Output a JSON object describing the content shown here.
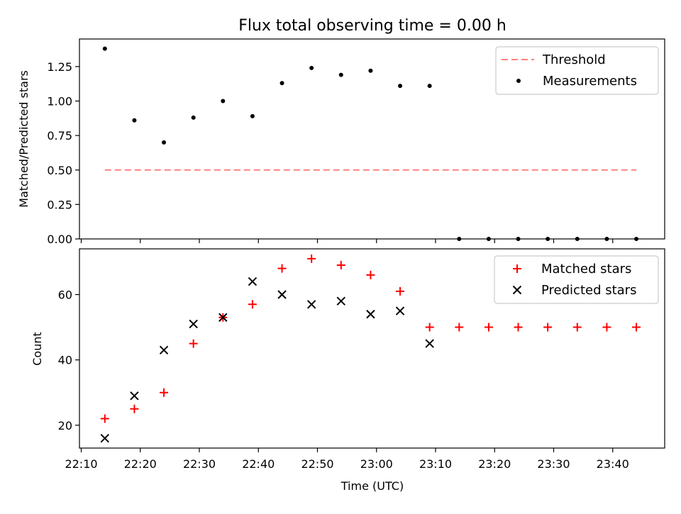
{
  "chart_data": [
    {
      "type": "scatter",
      "title": "Flux total observing time = 0.00 h",
      "xlabel": "",
      "ylabel": "Matched/Predicted stars",
      "ylim": [
        0,
        1.45
      ],
      "yticks": [
        "0.00",
        "0.25",
        "0.50",
        "0.75",
        "1.00",
        "1.25"
      ],
      "ytick_values": [
        0,
        0.25,
        0.5,
        0.75,
        1.0,
        1.25
      ],
      "legend_position": "top-right",
      "series": [
        {
          "name": "Threshold",
          "style": "dashed-line",
          "color": "#ff8080",
          "x": [
            "22:14",
            "23:44"
          ],
          "y": [
            0.5,
            0.5
          ]
        },
        {
          "name": "Measurements",
          "style": "dot",
          "color": "#000000",
          "x": [
            "22:14",
            "22:19",
            "22:24",
            "22:29",
            "22:34",
            "22:39",
            "22:44",
            "22:49",
            "22:54",
            "22:59",
            "23:04",
            "23:09",
            "23:14",
            "23:19",
            "23:24",
            "23:29",
            "23:34",
            "23:39",
            "23:44"
          ],
          "y": [
            1.38,
            0.86,
            0.7,
            0.88,
            1.0,
            0.89,
            1.13,
            1.24,
            1.19,
            1.22,
            1.11,
            1.11,
            0,
            0,
            0,
            0,
            0,
            0,
            0
          ]
        }
      ]
    },
    {
      "type": "scatter",
      "title": "",
      "xlabel": "Time (UTC)",
      "ylabel": "Count",
      "ylim": [
        13,
        74
      ],
      "yticks": [
        "20",
        "40",
        "60"
      ],
      "ytick_values": [
        20,
        40,
        60
      ],
      "xticks": [
        "22:10",
        "22:20",
        "22:30",
        "22:40",
        "22:50",
        "23:00",
        "23:10",
        "23:20",
        "23:30",
        "23:40"
      ],
      "legend_position": "top-right",
      "series": [
        {
          "name": "Matched stars",
          "style": "plus",
          "color": "#ff0000",
          "x": [
            "22:14",
            "22:19",
            "22:24",
            "22:29",
            "22:34",
            "22:39",
            "22:44",
            "22:49",
            "22:54",
            "22:59",
            "23:04",
            "23:09",
            "23:14",
            "23:19",
            "23:24",
            "23:29",
            "23:34",
            "23:39",
            "23:44"
          ],
          "y": [
            22,
            25,
            30,
            45,
            53,
            57,
            68,
            71,
            69,
            66,
            61,
            50,
            50,
            50,
            50,
            50,
            50,
            50,
            50
          ]
        },
        {
          "name": "Predicted stars",
          "style": "cross",
          "color": "#000000",
          "x": [
            "22:14",
            "22:19",
            "22:24",
            "22:29",
            "22:34",
            "22:39",
            "22:44",
            "22:49",
            "22:54",
            "22:59",
            "23:04",
            "23:09"
          ],
          "y": [
            16,
            29,
            43,
            51,
            53,
            64,
            60,
            57,
            58,
            54,
            55,
            45
          ]
        }
      ]
    }
  ]
}
